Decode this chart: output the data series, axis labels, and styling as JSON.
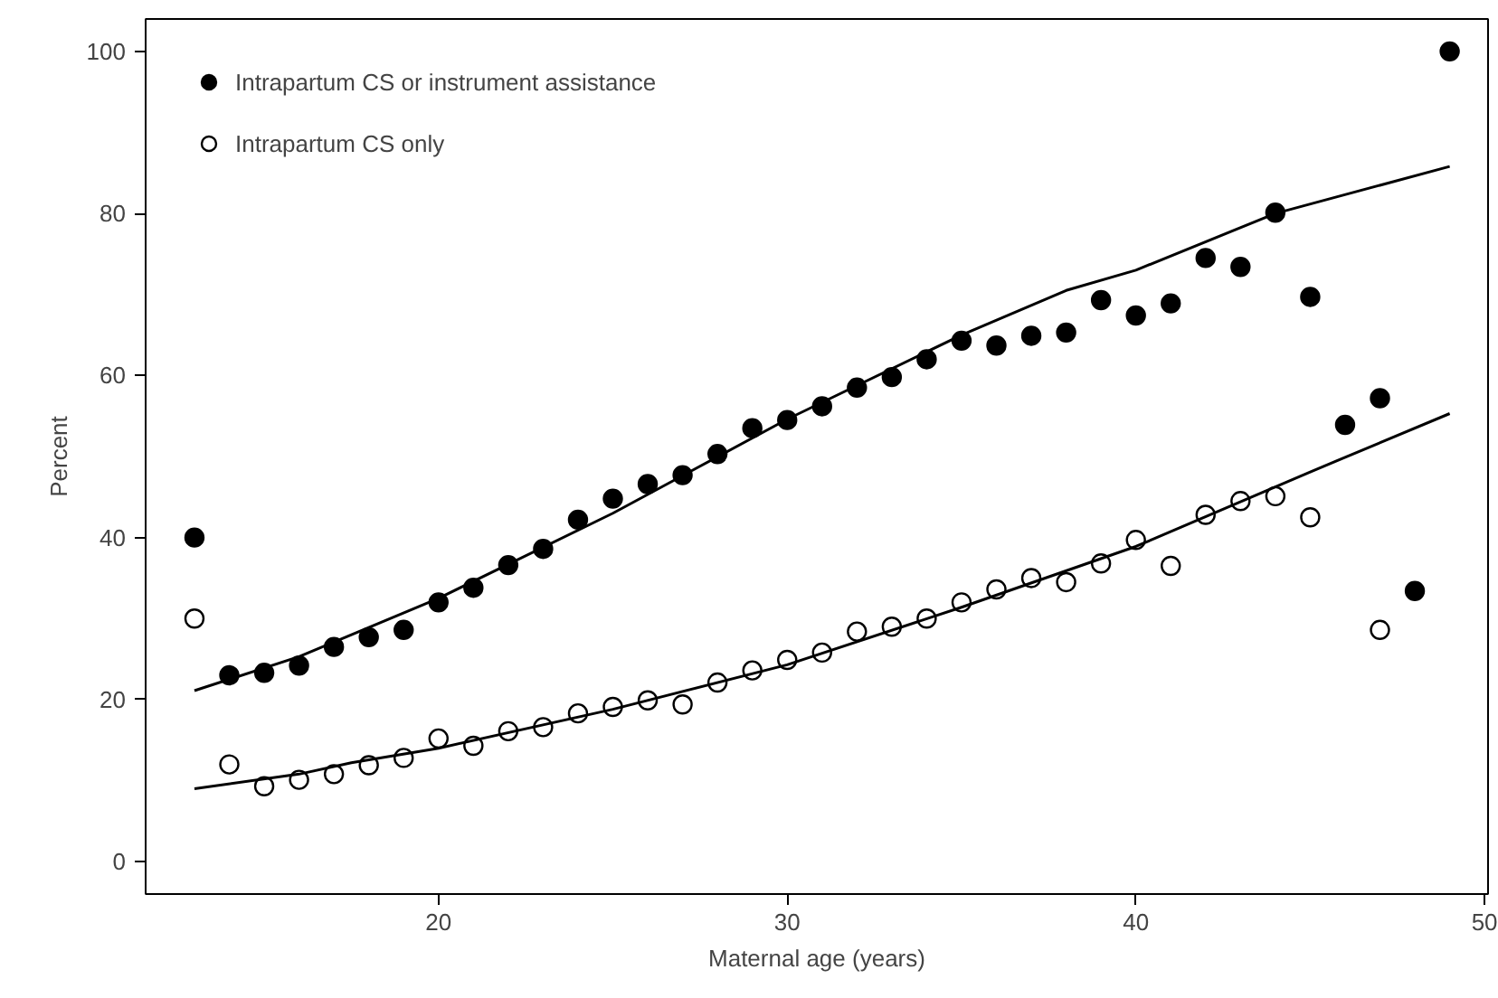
{
  "chart_data": {
    "type": "scatter",
    "xlabel": "Maternal age (years)",
    "ylabel": "Percent",
    "xlim": [
      11.6,
      50.1
    ],
    "ylim": [
      -4,
      104
    ],
    "xticks": [
      20,
      30,
      40,
      50
    ],
    "yticks": [
      0,
      20,
      40,
      60,
      80,
      100
    ],
    "grid": false,
    "legend": "top left",
    "series": [
      {
        "name": "Intrapartum CS or instrument assistance",
        "color": "#000000",
        "marker": "circle",
        "x": [
          13,
          14,
          15,
          16,
          17,
          18,
          19,
          20,
          21,
          22,
          23,
          24,
          25,
          26,
          27,
          28,
          29,
          30,
          31,
          32,
          33,
          34,
          35,
          36,
          37,
          38,
          39,
          40,
          41,
          42,
          43,
          44,
          45,
          46,
          47,
          48,
          49
        ],
        "values": [
          40.0,
          23.0,
          23.3,
          24.2,
          26.5,
          27.7,
          28.6,
          32.0,
          33.8,
          36.6,
          38.6,
          42.2,
          44.8,
          46.6,
          47.7,
          50.3,
          53.5,
          54.5,
          56.2,
          58.5,
          59.8,
          62.0,
          64.3,
          63.7,
          64.9,
          65.3,
          69.3,
          67.4,
          68.9,
          74.5,
          73.4,
          80.1,
          69.7,
          53.9,
          57.2,
          33.4,
          100
        ]
      },
      {
        "name": "Intrapartum CS only",
        "color": "#ffffff",
        "marker": "circle",
        "x": [
          13,
          14,
          15,
          16,
          17,
          18,
          19,
          20,
          21,
          22,
          23,
          24,
          25,
          26,
          27,
          28,
          29,
          30,
          31,
          32,
          33,
          34,
          35,
          36,
          37,
          38,
          39,
          40,
          41,
          42,
          43,
          44,
          45,
          47
        ],
        "values": [
          30.0,
          12.0,
          9.3,
          10.1,
          10.8,
          11.9,
          12.8,
          15.2,
          14.3,
          16.1,
          16.6,
          18.3,
          19.1,
          19.9,
          19.4,
          22.1,
          23.6,
          24.9,
          25.8,
          28.4,
          29.0,
          30.0,
          32.0,
          33.6,
          35.0,
          34.5,
          36.8,
          39.7,
          36.5,
          42.8,
          44.5,
          45.1,
          42.5,
          28.6
        ]
      },
      {
        "type": "line",
        "color": "#000000",
        "marker": "none",
        "x": [
          13,
          16,
          20,
          25,
          30,
          35,
          38,
          40,
          44,
          49
        ],
        "values": [
          21.1,
          25.3,
          32.5,
          43.0,
          54.6,
          65.0,
          70.5,
          73.0,
          80.0,
          85.8
        ]
      },
      {
        "type": "line",
        "color": "#000000",
        "marker": "none",
        "x": [
          13,
          16,
          17.5,
          20,
          25,
          30,
          35,
          40,
          45,
          49
        ],
        "values": [
          9.0,
          10.8,
          12.2,
          14.0,
          18.8,
          24.3,
          31.4,
          38.9,
          48.1,
          55.3
        ]
      }
    ]
  }
}
